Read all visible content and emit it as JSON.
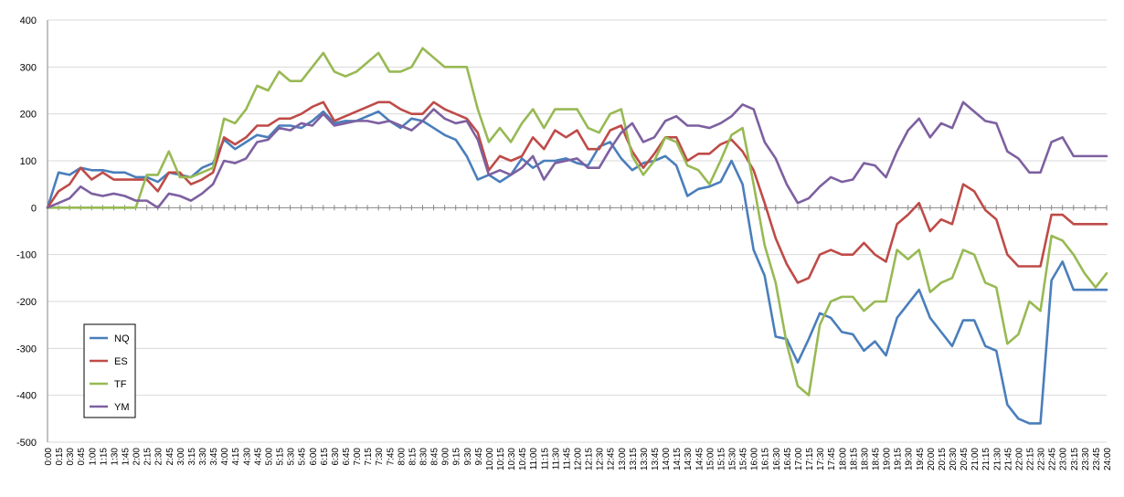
{
  "chart_data": {
    "type": "line",
    "title": "",
    "xlabel": "",
    "ylabel": "",
    "ylim": [
      -500,
      400
    ],
    "yticks": [
      400,
      300,
      200,
      100,
      0,
      -100,
      -200,
      -300,
      -400,
      -500
    ],
    "grid": "horizontal",
    "legend_position": "bottom-left",
    "x": [
      "0:00",
      "0:15",
      "0:30",
      "0:45",
      "1:00",
      "1:15",
      "1:30",
      "1:45",
      "2:00",
      "2:15",
      "2:30",
      "2:45",
      "3:00",
      "3:15",
      "3:30",
      "3:45",
      "4:00",
      "4:15",
      "4:30",
      "4:45",
      "5:00",
      "5:15",
      "5:30",
      "5:45",
      "6:00",
      "6:15",
      "6:30",
      "6:45",
      "7:00",
      "7:15",
      "7:30",
      "7:45",
      "8:00",
      "8:15",
      "8:30",
      "8:45",
      "9:00",
      "9:15",
      "9:30",
      "9:45",
      "10:00",
      "10:15",
      "10:30",
      "10:45",
      "11:00",
      "11:15",
      "11:30",
      "11:45",
      "12:00",
      "12:15",
      "12:30",
      "12:45",
      "13:00",
      "13:15",
      "13:30",
      "13:45",
      "14:00",
      "14:15",
      "14:30",
      "14:45",
      "15:00",
      "15:15",
      "15:30",
      "15:45",
      "16:00",
      "16:15",
      "16:30",
      "16:45",
      "17:00",
      "17:15",
      "17:30",
      "17:45",
      "18:00",
      "18:15",
      "18:30",
      "18:45",
      "19:00",
      "19:15",
      "19:30",
      "19:45",
      "20:00",
      "20:15",
      "20:30",
      "20:45",
      "21:00",
      "21:15",
      "21:30",
      "21:45",
      "22:00",
      "22:15",
      "22:30",
      "22:45",
      "23:00",
      "23:15",
      "23:30",
      "23:45",
      "24:00"
    ],
    "series": [
      {
        "name": "NQ",
        "color": "#4a7ebb",
        "values": [
          0,
          75,
          70,
          85,
          80,
          80,
          75,
          75,
          65,
          65,
          55,
          75,
          70,
          65,
          85,
          95,
          145,
          125,
          140,
          155,
          150,
          175,
          175,
          170,
          185,
          205,
          180,
          185,
          185,
          195,
          205,
          185,
          170,
          190,
          185,
          170,
          155,
          145,
          110,
          60,
          70,
          55,
          70,
          105,
          85,
          100,
          100,
          105,
          95,
          90,
          130,
          140,
          105,
          80,
          95,
          100,
          110,
          90,
          25,
          40,
          45,
          55,
          100,
          50,
          -90,
          -145,
          -275,
          -280,
          -330,
          -280,
          -225,
          -235,
          -265,
          -270,
          -305,
          -285,
          -315,
          -235,
          -205,
          -175,
          -235,
          -265,
          -295,
          -240,
          -240,
          -295,
          -305,
          -420,
          -450,
          -460,
          -460,
          -155,
          -115,
          -175,
          -175,
          -175,
          -175
        ]
      },
      {
        "name": "ES",
        "color": "#be4b48",
        "values": [
          0,
          35,
          50,
          85,
          60,
          75,
          60,
          60,
          60,
          60,
          35,
          75,
          75,
          50,
          60,
          75,
          150,
          135,
          150,
          175,
          175,
          190,
          190,
          200,
          215,
          225,
          185,
          195,
          205,
          215,
          225,
          225,
          210,
          200,
          200,
          225,
          210,
          200,
          190,
          160,
          80,
          110,
          100,
          110,
          150,
          125,
          165,
          150,
          165,
          125,
          125,
          165,
          175,
          120,
          85,
          115,
          150,
          150,
          100,
          115,
          115,
          135,
          145,
          120,
          80,
          10,
          -65,
          -120,
          -160,
          -150,
          -100,
          -90,
          -100,
          -100,
          -75,
          -100,
          -115,
          -35,
          -15,
          10,
          -50,
          -25,
          -35,
          50,
          35,
          -5,
          -25,
          -100,
          -125,
          -125,
          -125,
          -15,
          -15,
          -35,
          -35,
          -35,
          -35
        ]
      },
      {
        "name": "TF",
        "color": "#98b954",
        "values": [
          0,
          0,
          0,
          0,
          0,
          0,
          0,
          0,
          0,
          70,
          70,
          120,
          65,
          65,
          75,
          85,
          190,
          180,
          210,
          260,
          250,
          290,
          270,
          270,
          300,
          330,
          290,
          280,
          290,
          310,
          330,
          290,
          290,
          300,
          340,
          320,
          300,
          300,
          300,
          210,
          140,
          170,
          140,
          180,
          210,
          170,
          210,
          210,
          210,
          170,
          160,
          200,
          210,
          110,
          70,
          100,
          150,
          140,
          90,
          80,
          50,
          100,
          155,
          170,
          50,
          -80,
          -160,
          -290,
          -380,
          -400,
          -250,
          -200,
          -190,
          -190,
          -220,
          -200,
          -200,
          -90,
          -110,
          -90,
          -180,
          -160,
          -150,
          -90,
          -100,
          -160,
          -170,
          -290,
          -270,
          -200,
          -220,
          -60,
          -70,
          -100,
          -140,
          -170,
          -140
        ]
      },
      {
        "name": "YM",
        "color": "#7d60a0",
        "values": [
          0,
          10,
          20,
          45,
          30,
          25,
          30,
          25,
          15,
          15,
          0,
          30,
          25,
          15,
          30,
          50,
          100,
          95,
          105,
          140,
          145,
          170,
          165,
          180,
          175,
          200,
          175,
          180,
          185,
          185,
          180,
          185,
          175,
          165,
          185,
          210,
          190,
          180,
          185,
          145,
          70,
          80,
          70,
          85,
          110,
          60,
          95,
          100,
          105,
          85,
          85,
          125,
          160,
          180,
          140,
          150,
          185,
          195,
          175,
          175,
          170,
          180,
          195,
          220,
          210,
          140,
          105,
          50,
          10,
          20,
          45,
          65,
          55,
          60,
          95,
          90,
          65,
          120,
          165,
          190,
          150,
          180,
          170,
          225,
          205,
          185,
          180,
          120,
          105,
          75,
          75,
          140,
          150,
          110,
          110,
          110,
          110
        ]
      }
    ]
  }
}
